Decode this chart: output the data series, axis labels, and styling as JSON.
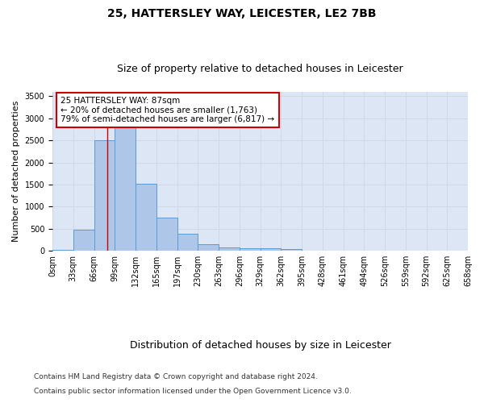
{
  "title1": "25, HATTERSLEY WAY, LEICESTER, LE2 7BB",
  "title2": "Size of property relative to detached houses in Leicester",
  "xlabel": "Distribution of detached houses by size in Leicester",
  "ylabel": "Number of detached properties",
  "bar_values": [
    20,
    480,
    2500,
    2820,
    1520,
    750,
    390,
    140,
    75,
    55,
    55,
    30,
    0,
    0,
    0,
    0,
    0,
    0,
    0,
    0
  ],
  "bin_labels": [
    "0sqm",
    "33sqm",
    "66sqm",
    "99sqm",
    "132sqm",
    "165sqm",
    "197sqm",
    "230sqm",
    "263sqm",
    "296sqm",
    "329sqm",
    "362sqm",
    "395sqm",
    "428sqm",
    "461sqm",
    "494sqm",
    "526sqm",
    "559sqm",
    "592sqm",
    "625sqm",
    "658sqm"
  ],
  "bar_color": "#aec6e8",
  "bar_edgecolor": "#5b9bd5",
  "vline_x": 2.64,
  "annotation_line1": "25 HATTERSLEY WAY: 87sqm",
  "annotation_line2": "← 20% of detached houses are smaller (1,763)",
  "annotation_line3": "79% of semi-detached houses are larger (6,817) →",
  "annotation_box_color": "#ffffff",
  "annotation_box_edgecolor": "#cc0000",
  "vline_color": "#cc0000",
  "ylim": [
    0,
    3600
  ],
  "yticks": [
    0,
    500,
    1000,
    1500,
    2000,
    2500,
    3000,
    3500
  ],
  "grid_color": "#d0d8e8",
  "bg_color": "#dce6f5",
  "footnote1": "Contains HM Land Registry data © Crown copyright and database right 2024.",
  "footnote2": "Contains public sector information licensed under the Open Government Licence v3.0.",
  "title1_fontsize": 10,
  "title2_fontsize": 9,
  "xlabel_fontsize": 9,
  "ylabel_fontsize": 8,
  "tick_fontsize": 7,
  "annotation_fontsize": 7.5,
  "footnote_fontsize": 6.5
}
